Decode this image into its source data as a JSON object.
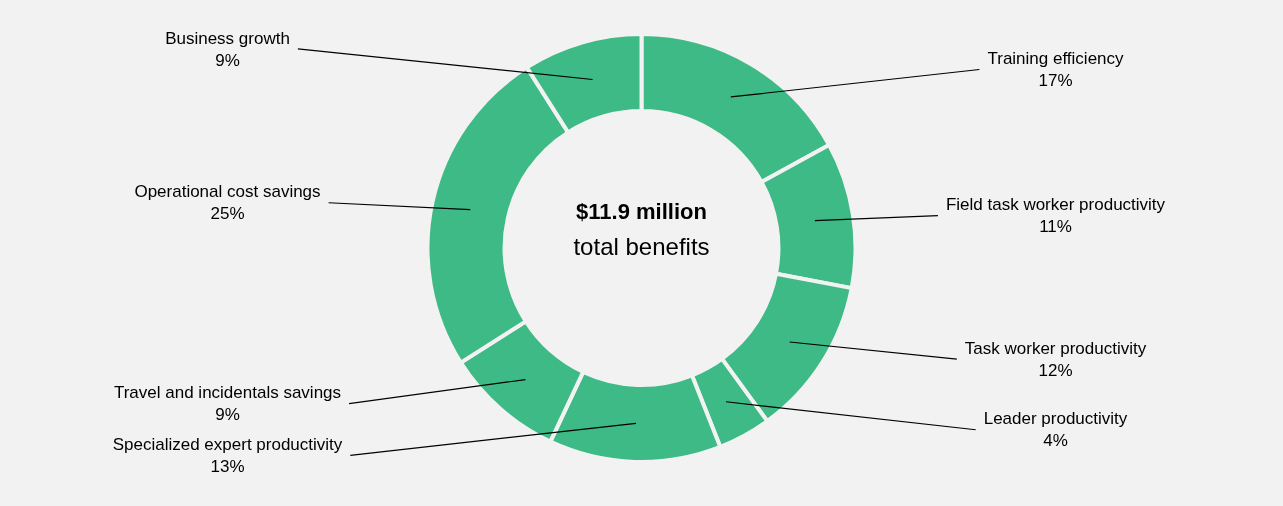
{
  "chart_data": {
    "type": "donut",
    "title": "$11.9 million",
    "subtitle": "total benefits",
    "categories": [
      "Training efficiency",
      "Field task worker productivity",
      "Task worker productivity",
      "Leader productivity",
      "Specialized expert productivity",
      "Travel and incidentals savings",
      "Operational cost savings",
      "Business growth"
    ],
    "values": [
      17,
      11,
      12,
      4,
      13,
      9,
      25,
      9
    ],
    "colors": [
      "#3dba85",
      "#3dba85",
      "#3dba85",
      "#3dba85",
      "#3dba85",
      "#3dba85",
      "#3dba85",
      "#3dba85"
    ],
    "value_labels": [
      "17%",
      "11%",
      "12%",
      "4%",
      "13%",
      "9%",
      "25%",
      "9%"
    ],
    "legend": false
  }
}
